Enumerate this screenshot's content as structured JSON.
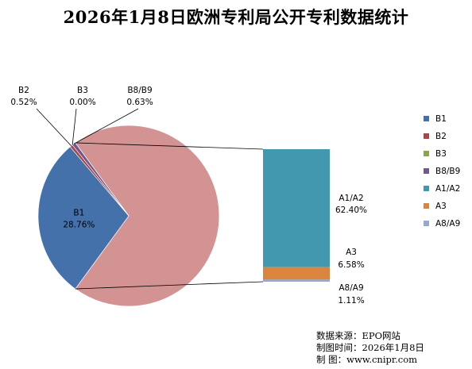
{
  "title": "2026年1月8日欧洲专利局公开专利数据统计",
  "chart_data": {
    "type": "bar-of-pie",
    "title": "2026年1月8日欧洲专利局公开专利数据统计",
    "pie": [
      {
        "name": "B1",
        "value": 28.76,
        "label": "28.76%",
        "color": "#4571AA"
      },
      {
        "name": "B2",
        "value": 0.52,
        "label": "0.52%",
        "color": "#AA4643"
      },
      {
        "name": "B3",
        "value": 0.0,
        "label": "0.00%",
        "color": "#89A54E"
      },
      {
        "name": "B8/B9",
        "value": 0.63,
        "label": "0.63%",
        "color": "#71588F"
      }
    ],
    "other_color": "#D39393",
    "bar": [
      {
        "name": "A1/A2",
        "value": 62.4,
        "label": "62.40%",
        "color": "#4198AF"
      },
      {
        "name": "A3",
        "value": 6.58,
        "label": "6.58%",
        "color": "#DB843D"
      },
      {
        "name": "A8/A9",
        "value": 1.11,
        "label": "1.11%",
        "color": "#93A9CF"
      }
    ],
    "legend": [
      "B1",
      "B2",
      "B3",
      "B8/B9",
      "A1/A2",
      "A3",
      "A8/A9"
    ],
    "legend_colors": [
      "#4571AA",
      "#AA4643",
      "#89A54E",
      "#71588F",
      "#4198AF",
      "#DB843D",
      "#93A9CF"
    ],
    "legend_position": "right"
  },
  "source": {
    "line1": "数据来源：EPO网站",
    "line2": "制图时间：2026年1月8日",
    "line3": "制      图：www.cnipr.com"
  }
}
